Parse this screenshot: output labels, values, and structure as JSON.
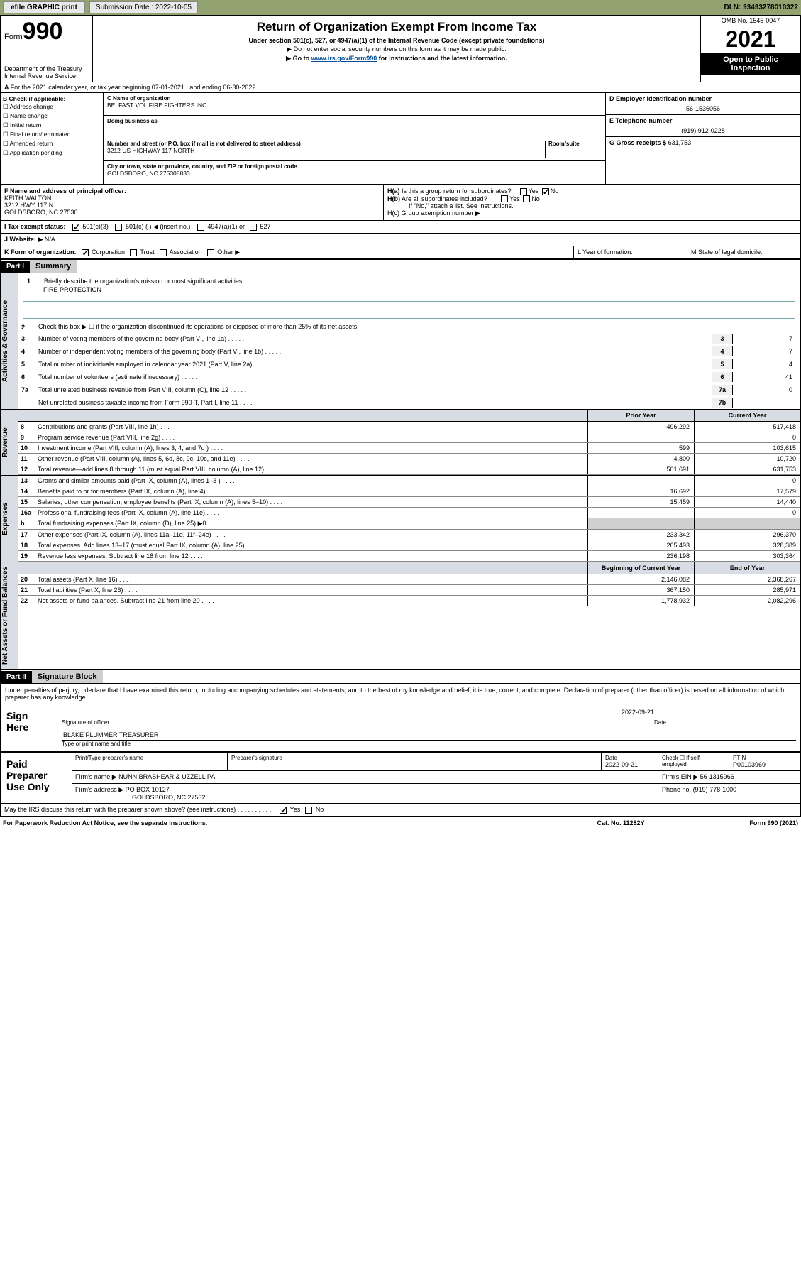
{
  "topbar": {
    "efile": "efile GRAPHIC print",
    "sub_label": "Submission Date : 2022-10-05",
    "dln": "DLN: 93493278010322"
  },
  "header": {
    "form_prefix": "Form",
    "form_number": "990",
    "title": "Return of Organization Exempt From Income Tax",
    "subtitle": "Under section 501(c), 527, or 4947(a)(1) of the Internal Revenue Code (except private foundations)",
    "note1": "▶ Do not enter social security numbers on this form as it may be made public.",
    "note2": "▶ Go to ",
    "link": "www.irs.gov/Form990",
    "note2b": " for instructions and the latest information.",
    "dept": "Department of the Treasury\nInternal Revenue Service",
    "omb": "OMB No. 1545-0047",
    "year": "2021",
    "open": "Open to Public Inspection"
  },
  "section_a": "For the 2021 calendar year, or tax year beginning 07-01-2021 , and ending 06-30-2022",
  "box_b": {
    "header": "B Check if applicable:",
    "items": [
      "Address change",
      "Name change",
      "Initial return",
      "Final return/terminated",
      "Amended return",
      "Application pending"
    ]
  },
  "box_c": {
    "label": "C Name of organization",
    "name": "BELFAST VOL FIRE FIGHTERS INC",
    "dba_label": "Doing business as",
    "addr_label": "Number and street (or P.O. box if mail is not delivered to street address)",
    "room_label": "Room/suite",
    "addr": "3212 US HIGHWAY 117 NORTH",
    "city_label": "City or town, state or province, country, and ZIP or foreign postal code",
    "city": "GOLDSBORO, NC 275308833"
  },
  "box_d": {
    "label": "D Employer identification number",
    "val": "56-1536056"
  },
  "box_e": {
    "label": "E Telephone number",
    "val": "(919) 912-0228"
  },
  "box_g": {
    "label": "G Gross receipts $",
    "val": "631,753"
  },
  "box_f": {
    "label": "F Name and address of principal officer:",
    "name": "KEITH WALTON",
    "addr1": "3212 HWY 117 N",
    "addr2": "GOLDSBORO, NC 27530"
  },
  "box_h": {
    "ha": "H(a) Is this a group return for subordinates?",
    "hb": "H(b) Are all subordinates included?",
    "hb_note": "If \"No,\" attach a list. See instructions.",
    "hc": "H(c) Group exemption number ▶",
    "yes": "Yes",
    "no": "No"
  },
  "box_i": {
    "label": "I Tax-exempt status:",
    "o1": "501(c)(3)",
    "o2": "501(c) ( ) ◀ (insert no.)",
    "o3": "4947(a)(1) or",
    "o4": "527"
  },
  "box_j": {
    "label": "J Website: ▶",
    "val": "N/A"
  },
  "box_k": {
    "label": "K Form of organization:",
    "o1": "Corporation",
    "o2": "Trust",
    "o3": "Association",
    "o4": "Other ▶"
  },
  "box_l": "L Year of formation:",
  "box_m": "M State of legal domicile:",
  "part1": {
    "hdr": "Part I",
    "title": "Summary",
    "q1": "Briefly describe the organization's mission or most significant activities:",
    "q1_val": "FIRE PROTECTION",
    "q2": "Check this box ▶ ☐ if the organization discontinued its operations or disposed of more than 25% of its net assets.",
    "rows_ag": [
      {
        "n": "3",
        "t": "Number of voting members of the governing body (Part VI, line 1a)",
        "box": "3",
        "v": "7"
      },
      {
        "n": "4",
        "t": "Number of independent voting members of the governing body (Part VI, line 1b)",
        "box": "4",
        "v": "7"
      },
      {
        "n": "5",
        "t": "Total number of individuals employed in calendar year 2021 (Part V, line 2a)",
        "box": "5",
        "v": "4"
      },
      {
        "n": "6",
        "t": "Total number of volunteers (estimate if necessary)",
        "box": "6",
        "v": "41"
      },
      {
        "n": "7a",
        "t": "Total unrelated business revenue from Part VIII, column (C), line 12",
        "box": "7a",
        "v": "0"
      },
      {
        "n": "",
        "t": "Net unrelated business taxable income from Form 990-T, Part I, line 11",
        "box": "7b",
        "v": ""
      }
    ],
    "prior": "Prior Year",
    "current": "Current Year",
    "rows_rev": [
      {
        "n": "8",
        "t": "Contributions and grants (Part VIII, line 1h)",
        "p": "496,292",
        "c": "517,418"
      },
      {
        "n": "9",
        "t": "Program service revenue (Part VIII, line 2g)",
        "p": "",
        "c": "0"
      },
      {
        "n": "10",
        "t": "Investment income (Part VIII, column (A), lines 3, 4, and 7d )",
        "p": "599",
        "c": "103,615"
      },
      {
        "n": "11",
        "t": "Other revenue (Part VIII, column (A), lines 5, 6d, 8c, 9c, 10c, and 11e)",
        "p": "4,800",
        "c": "10,720"
      },
      {
        "n": "12",
        "t": "Total revenue—add lines 8 through 11 (must equal Part VIII, column (A), line 12)",
        "p": "501,691",
        "c": "631,753"
      }
    ],
    "rows_exp": [
      {
        "n": "13",
        "t": "Grants and similar amounts paid (Part IX, column (A), lines 1–3 )",
        "p": "",
        "c": "0"
      },
      {
        "n": "14",
        "t": "Benefits paid to or for members (Part IX, column (A), line 4)",
        "p": "16,692",
        "c": "17,579"
      },
      {
        "n": "15",
        "t": "Salaries, other compensation, employee benefits (Part IX, column (A), lines 5–10)",
        "p": "15,459",
        "c": "14,440"
      },
      {
        "n": "16a",
        "t": "Professional fundraising fees (Part IX, column (A), line 11e)",
        "p": "",
        "c": "0"
      },
      {
        "n": "b",
        "t": "Total fundraising expenses (Part IX, column (D), line 25) ▶0",
        "p": "shade",
        "c": "shade"
      },
      {
        "n": "17",
        "t": "Other expenses (Part IX, column (A), lines 11a–11d, 11f–24e)",
        "p": "233,342",
        "c": "296,370"
      },
      {
        "n": "18",
        "t": "Total expenses. Add lines 13–17 (must equal Part IX, column (A), line 25)",
        "p": "265,493",
        "c": "328,389"
      },
      {
        "n": "19",
        "t": "Revenue less expenses. Subtract line 18 from line 12",
        "p": "236,198",
        "c": "303,364"
      }
    ],
    "begin": "Beginning of Current Year",
    "end": "End of Year",
    "rows_net": [
      {
        "n": "20",
        "t": "Total assets (Part X, line 16)",
        "p": "2,146,082",
        "c": "2,368,267"
      },
      {
        "n": "21",
        "t": "Total liabilities (Part X, line 26)",
        "p": "367,150",
        "c": "285,971"
      },
      {
        "n": "22",
        "t": "Net assets or fund balances. Subtract line 21 from line 20",
        "p": "1,778,932",
        "c": "2,082,296"
      }
    ]
  },
  "vtabs": {
    "ag": "Activities & Governance",
    "rev": "Revenue",
    "exp": "Expenses",
    "net": "Net Assets or Fund Balances"
  },
  "part2": {
    "hdr": "Part II",
    "title": "Signature Block",
    "decl": "Under penalties of perjury, I declare that I have examined this return, including accompanying schedules and statements, and to the best of my knowledge and belief, it is true, correct, and complete. Declaration of preparer (other than officer) is based on all information of which preparer has any knowledge.",
    "sign_here": "Sign Here",
    "sig_officer": "Signature of officer",
    "date_label": "Date",
    "sig_date": "2022-09-21",
    "officer_name": "BLAKE PLUMMER TREASURER",
    "type_label": "Type or print name and title",
    "paid": "Paid Preparer Use Only",
    "prep_name_label": "Print/Type preparer's name",
    "prep_sig_label": "Preparer's signature",
    "prep_date": "2022-09-21",
    "check_self": "Check ☐ if self-employed",
    "ptin_label": "PTIN",
    "ptin": "P00103969",
    "firm_name_label": "Firm's name ▶",
    "firm_name": "NUNN BRASHEAR & UZZELL PA",
    "firm_ein_label": "Firm's EIN ▶",
    "firm_ein": "56-1315966",
    "firm_addr_label": "Firm's address ▶",
    "firm_addr": "PO BOX 10127",
    "firm_city": "GOLDSBORO, NC 27532",
    "phone_label": "Phone no.",
    "phone": "(919) 778-1000",
    "discuss": "May the IRS discuss this return with the preparer shown above? (see instructions)",
    "yes": "Yes",
    "no": "No"
  },
  "footer": {
    "l": "For Paperwork Reduction Act Notice, see the separate instructions.",
    "c": "Cat. No. 11282Y",
    "r": "Form 990 (2021)"
  }
}
